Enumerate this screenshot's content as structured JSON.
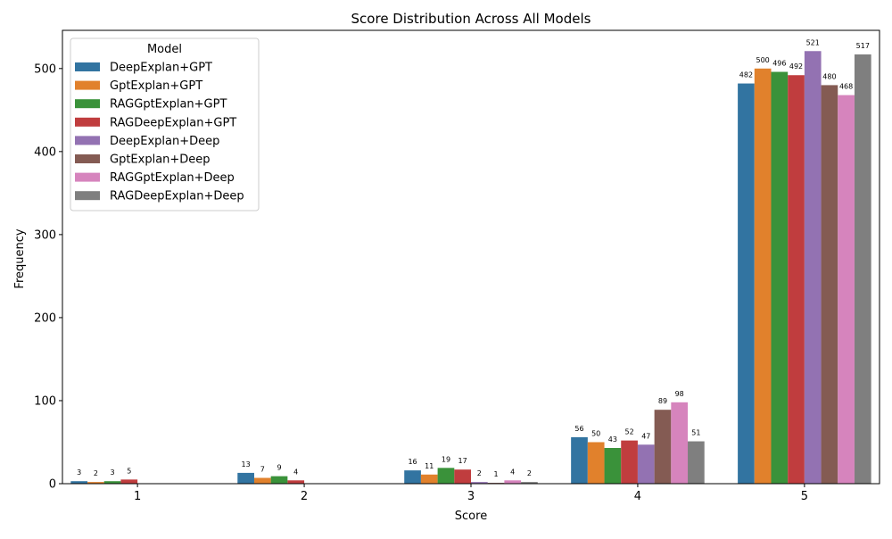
{
  "chart_data": {
    "type": "bar",
    "title": "Score Distribution Across All Models",
    "xlabel": "Score",
    "ylabel": "Frequency",
    "categories": [
      "1",
      "2",
      "3",
      "4",
      "5"
    ],
    "ylim": [
      0,
      546
    ],
    "yticks": [
      0,
      100,
      200,
      300,
      400,
      500
    ],
    "grid": false,
    "legend": {
      "title": "Model",
      "placement": "top-left"
    },
    "series": [
      {
        "name": "DeepExplan+GPT",
        "color": "#3274a1",
        "values": [
          3,
          13,
          16,
          56,
          482
        ],
        "labels": [
          "3",
          "13",
          "16",
          "56",
          "482"
        ]
      },
      {
        "name": "GptExplan+GPT",
        "color": "#e1812c",
        "values": [
          2,
          7,
          11,
          50,
          500
        ],
        "labels": [
          "2",
          "7",
          "11",
          "50",
          "500"
        ]
      },
      {
        "name": "RAGGptExplan+GPT",
        "color": "#3a923a",
        "values": [
          3,
          9,
          19,
          43,
          496
        ],
        "labels": [
          "3",
          "9",
          "19",
          "43",
          "496"
        ]
      },
      {
        "name": "RAGDeepExplan+GPT",
        "color": "#c03d3e",
        "values": [
          5,
          4,
          17,
          52,
          492
        ],
        "labels": [
          "5",
          "4",
          "17",
          "52",
          "492"
        ]
      },
      {
        "name": "DeepExplan+Deep",
        "color": "#9372b2",
        "values": [
          0,
          0,
          2,
          47,
          521
        ],
        "labels": [
          "",
          "",
          "2",
          "47",
          "521"
        ]
      },
      {
        "name": "GptExplan+Deep",
        "color": "#845b53",
        "values": [
          0,
          0,
          1,
          89,
          480
        ],
        "labels": [
          "",
          "",
          "1",
          "89",
          "480"
        ]
      },
      {
        "name": "RAGGptExplan+Deep",
        "color": "#d684bd",
        "values": [
          0,
          0,
          4,
          98,
          468
        ],
        "labels": [
          "",
          "",
          "4",
          "98",
          "468"
        ]
      },
      {
        "name": "RAGDeepExplan+Deep",
        "color": "#7f7f7f",
        "values": [
          0,
          0,
          2,
          51,
          517
        ],
        "labels": [
          "",
          "",
          "2",
          "51",
          "517"
        ]
      }
    ]
  }
}
